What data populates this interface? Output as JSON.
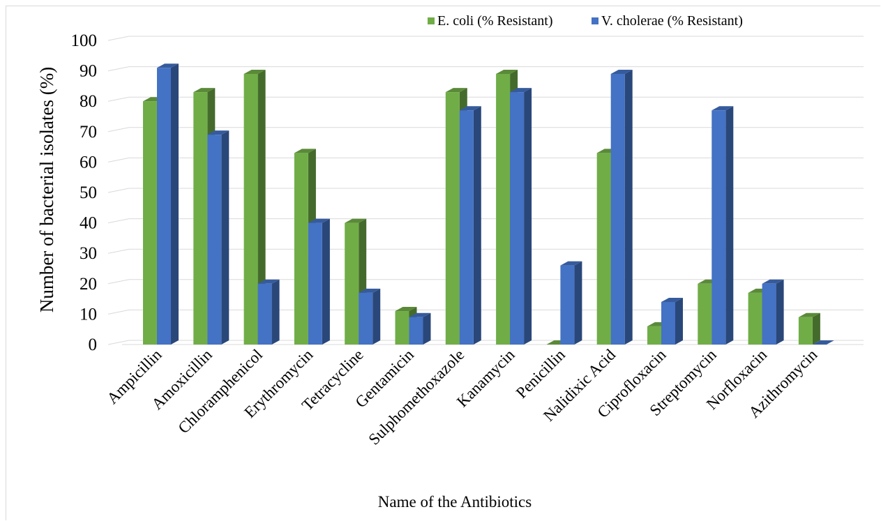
{
  "chart_data": {
    "type": "bar",
    "style": "3d-clustered-column",
    "title": "",
    "xlabel": "Name of the Antibiotics",
    "ylabel": "Number of bacterial isolates (%)",
    "ylim": [
      0,
      100
    ],
    "yticks": [
      0,
      10,
      20,
      30,
      40,
      50,
      60,
      70,
      80,
      90,
      100
    ],
    "grid": true,
    "legend_position": "top-right",
    "categories": [
      "Ampicillin",
      "Amoxicillin",
      "Chloramphenicol",
      "Erythromycin",
      "Tetracycline",
      "Gentamicin",
      "Sulphomethoxazole",
      "Kanamycin",
      "Penicillin",
      "Nalidixic Acid",
      "Ciprofloxacin",
      "Streptomycin",
      "Norfloxacin",
      "Azithromycin"
    ],
    "series": [
      {
        "name": "E. coli (% Resistant)",
        "color": "#70ad47",
        "values": [
          80,
          83,
          89,
          63,
          40,
          11,
          83,
          89,
          0,
          63,
          6,
          20,
          17,
          9
        ]
      },
      {
        "name": "V. cholerae (% Resistant)",
        "color": "#4472c4",
        "values": [
          91,
          69,
          20,
          40,
          17,
          9,
          77,
          83,
          26,
          89,
          14,
          77,
          20,
          0
        ]
      }
    ]
  }
}
